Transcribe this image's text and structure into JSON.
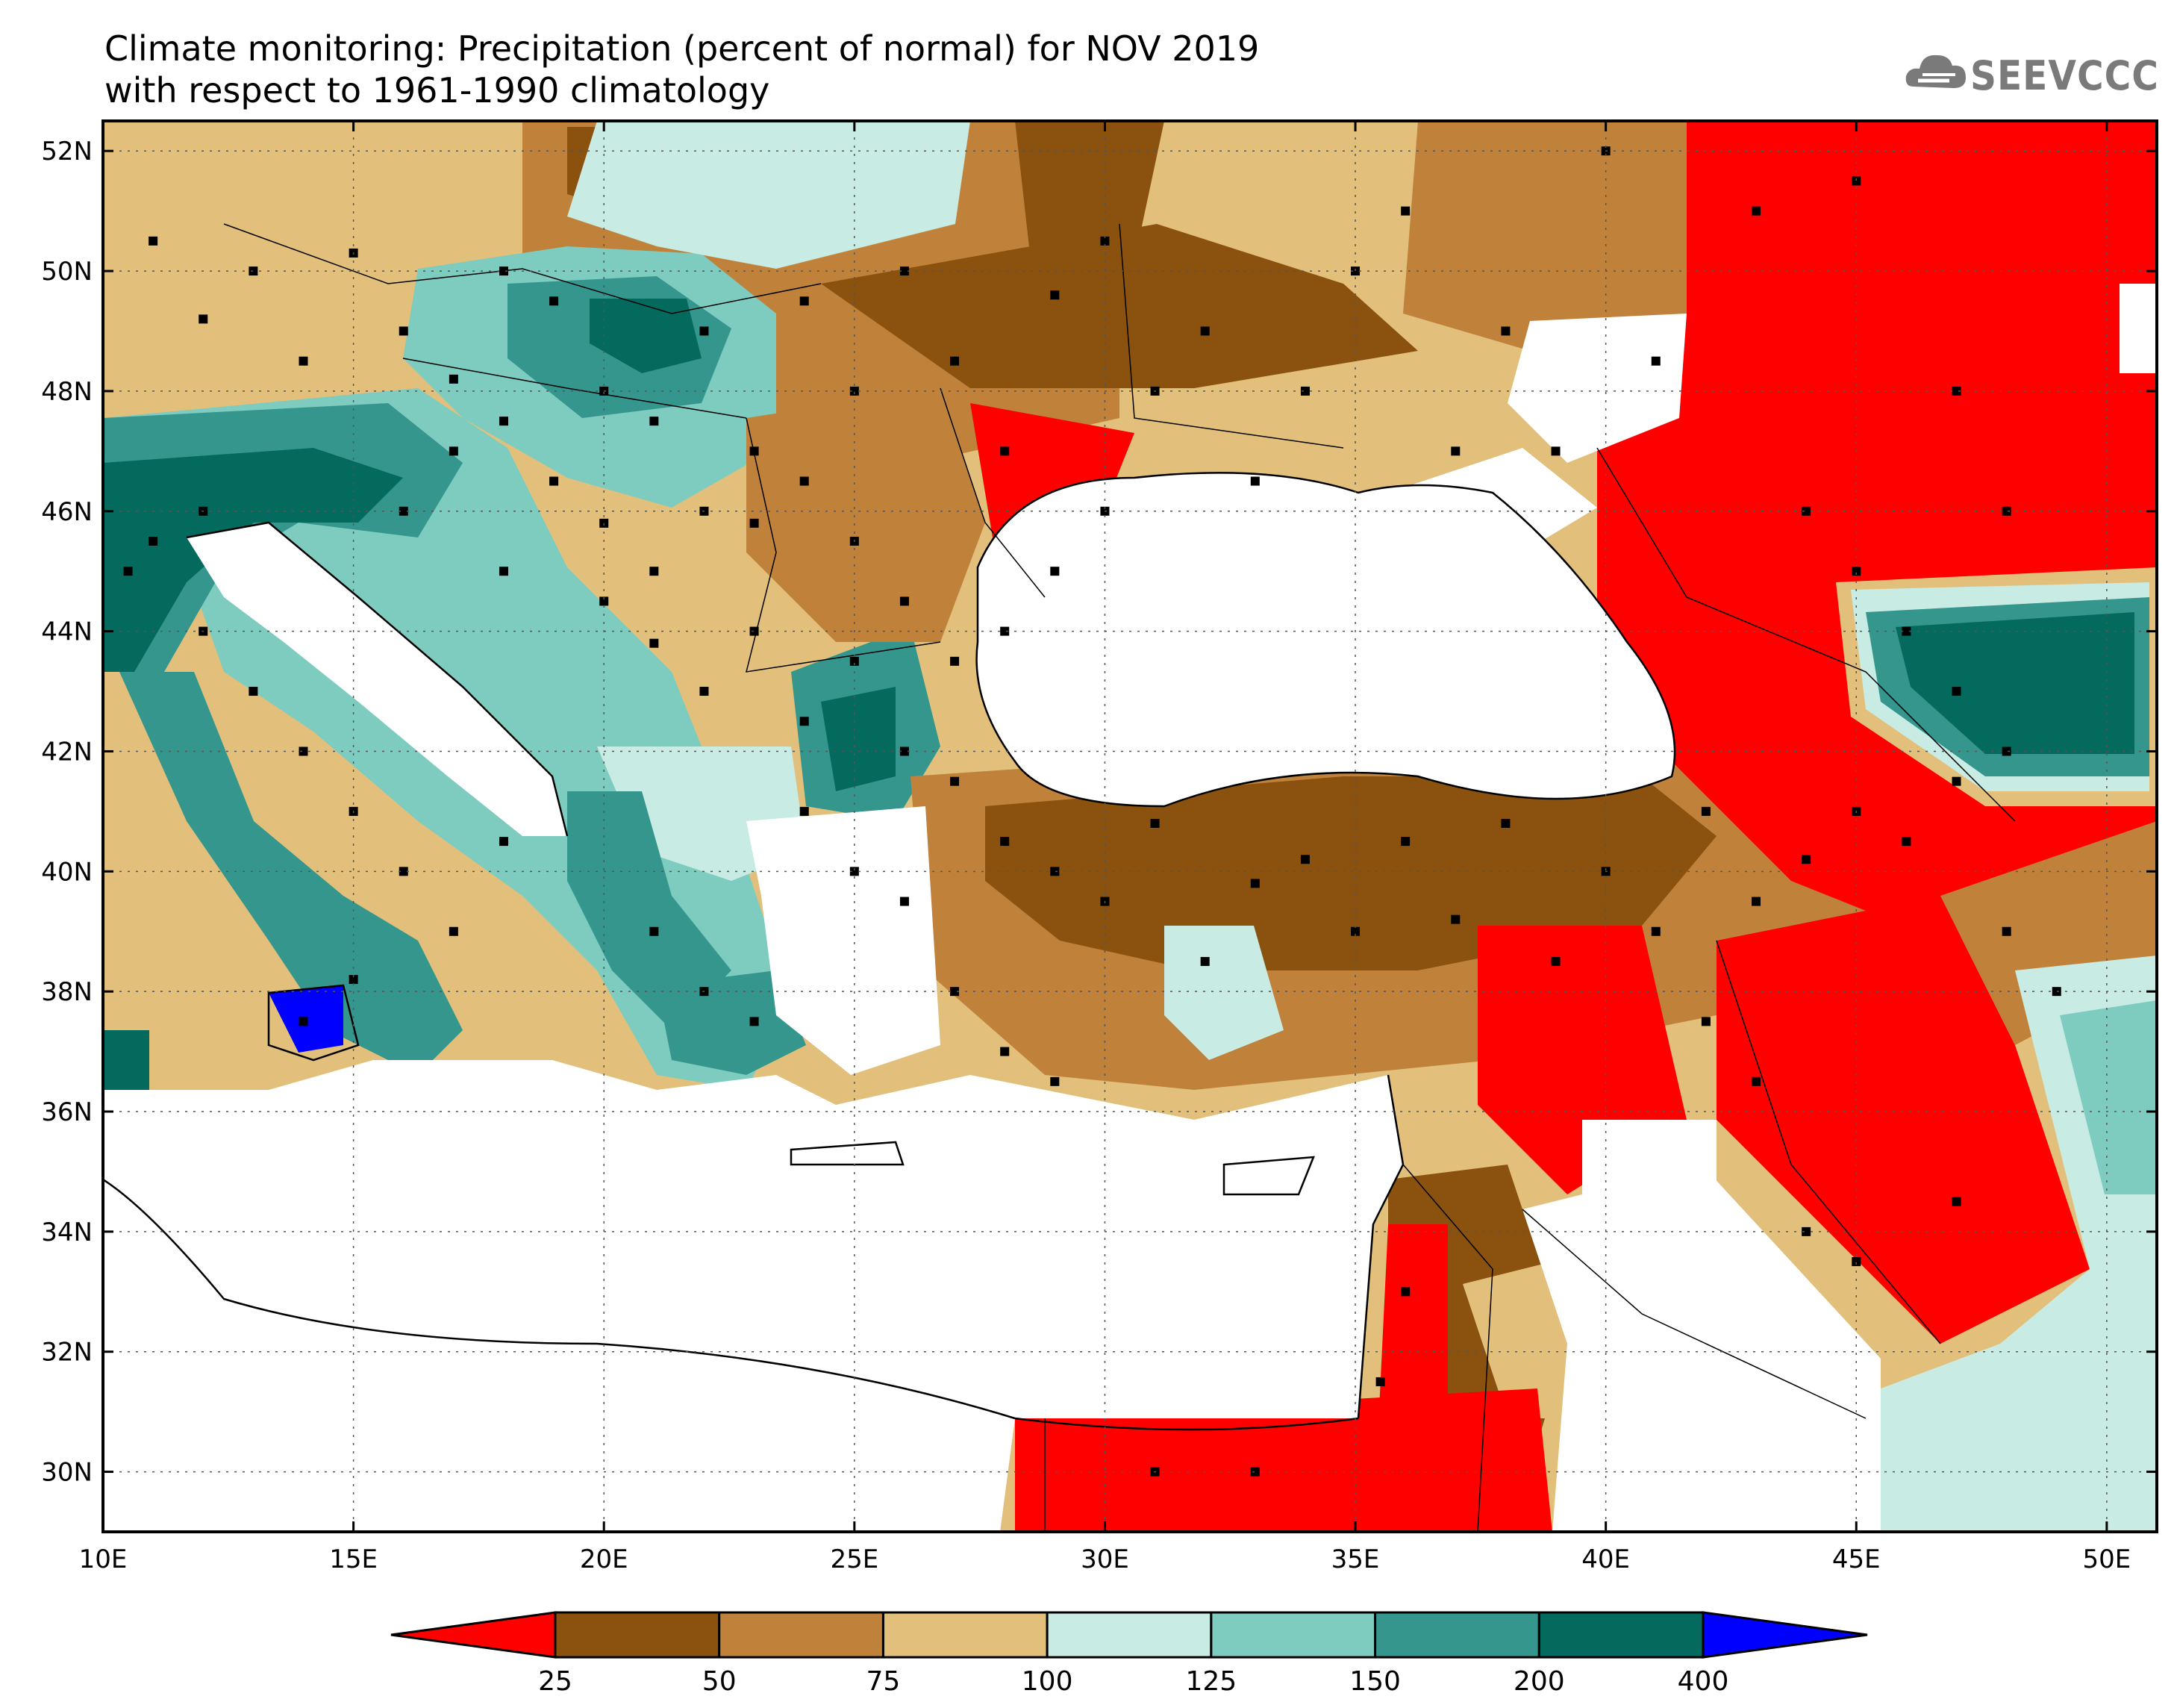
{
  "title": {
    "line1": "Climate monitoring: Precipitation (percent of normal) for NOV 2019",
    "line2": "with respect to 1961-1990 climatology"
  },
  "logo": {
    "text": "SEEVCCC",
    "icon": "cloud-icon",
    "color": "#7a7a7a"
  },
  "map": {
    "lon_range": [
      10,
      51
    ],
    "lat_range": [
      29,
      52.5
    ],
    "x_ticks": [
      "10E",
      "15E",
      "20E",
      "25E",
      "30E",
      "35E",
      "40E",
      "45E",
      "50E"
    ],
    "y_ticks": [
      "30N",
      "32N",
      "34N",
      "36N",
      "38N",
      "40N",
      "42N",
      "44N",
      "46N",
      "48N",
      "50N",
      "52N"
    ],
    "x_tick_values": [
      10,
      15,
      20,
      25,
      30,
      35,
      40,
      45,
      50
    ],
    "y_tick_values": [
      30,
      32,
      34,
      36,
      38,
      40,
      42,
      44,
      46,
      48,
      50,
      52
    ],
    "grid": "dotted"
  },
  "colorbar": {
    "labels": [
      "25",
      "50",
      "75",
      "100",
      "125",
      "150",
      "200",
      "400"
    ],
    "colors": [
      "#ff0000",
      "#8b520f",
      "#c0823a",
      "#e2c07c",
      "#c8ebe4",
      "#7ecbc0",
      "#35968e",
      "#046a5e",
      "#0000ff"
    ]
  },
  "colors": {
    "dry_extreme": "#ff0000",
    "very_dry": "#8b520f",
    "dry": "#c0823a",
    "slightly_dry": "#e2c07c",
    "slightly_wet": "#c8ebe4",
    "wet": "#7ecbc0",
    "very_wet": "#35968e",
    "extreme_wet": "#046a5e",
    "record_wet": "#0000ff"
  }
}
